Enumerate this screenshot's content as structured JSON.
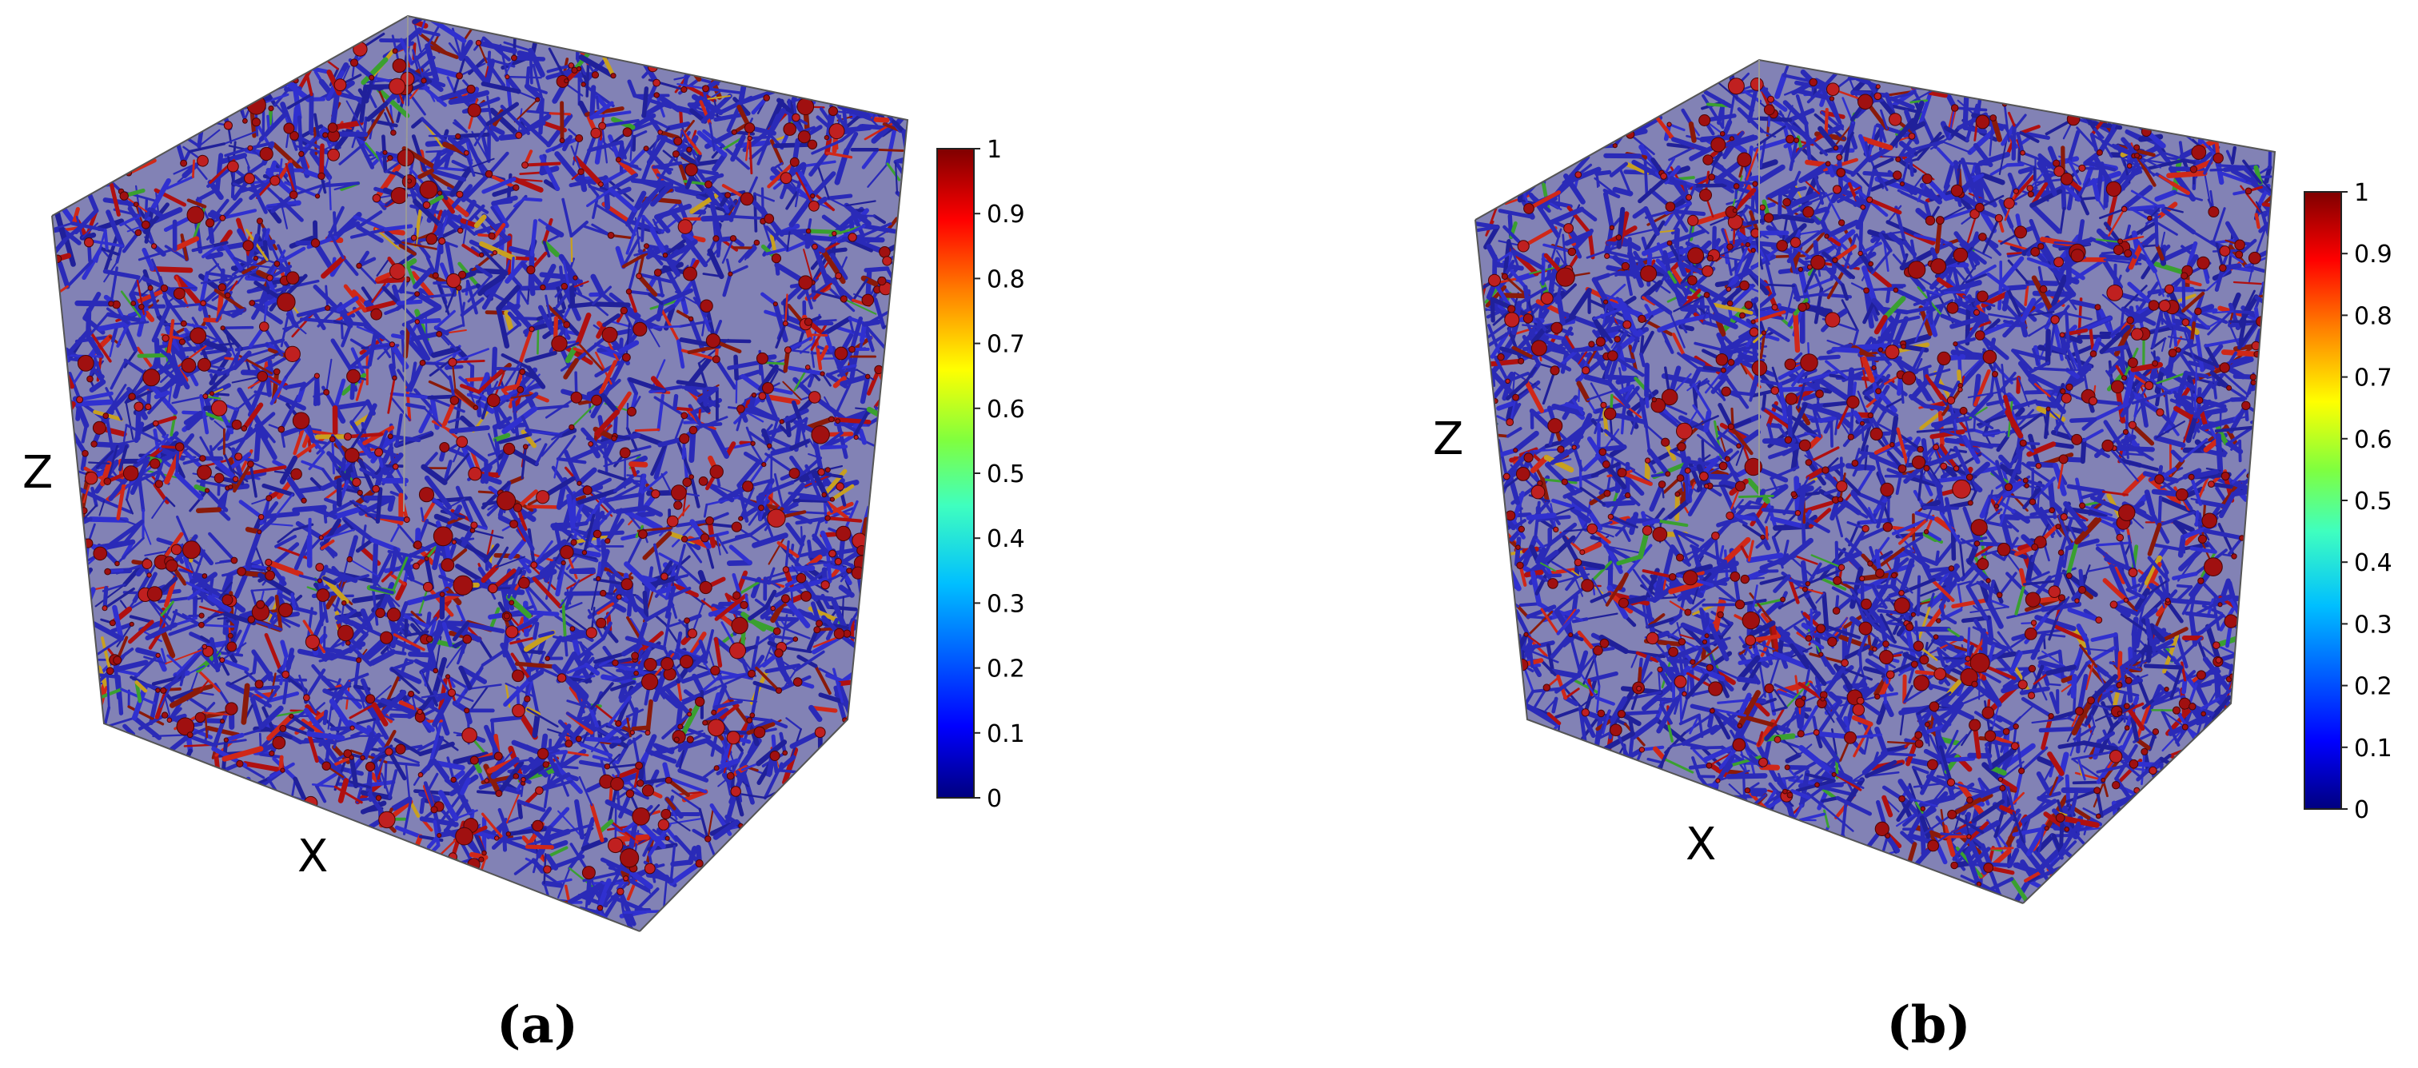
{
  "panels": [
    {
      "id": "a",
      "label": "(a)",
      "axis_z": "Z",
      "axis_x": "X",
      "colorbar_ticks": [
        "0",
        "0.1",
        "0.2",
        "0.3",
        "0.4",
        "0.5",
        "0.6",
        "0.7",
        "0.8",
        "0.9",
        "1"
      ]
    },
    {
      "id": "b",
      "label": "(b)",
      "axis_z": "Z",
      "axis_x": "X",
      "colorbar_ticks": [
        "0",
        "0.1",
        "0.2",
        "0.3",
        "0.4",
        "0.5",
        "0.6",
        "0.7",
        "0.8",
        "0.9",
        "1"
      ]
    }
  ],
  "colormap": [
    "#00007f",
    "#0000ff",
    "#007fff",
    "#00ffff",
    "#7fff7f",
    "#ffff00",
    "#ff7f00",
    "#ff0000",
    "#7f0000"
  ],
  "network_colors": {
    "dominant": "#2a2ab8",
    "secondary": [
      "#b01010",
      "#d02818",
      "#8a1a0a",
      "#3aa030",
      "#c8a020",
      "#1a1a80"
    ]
  }
}
